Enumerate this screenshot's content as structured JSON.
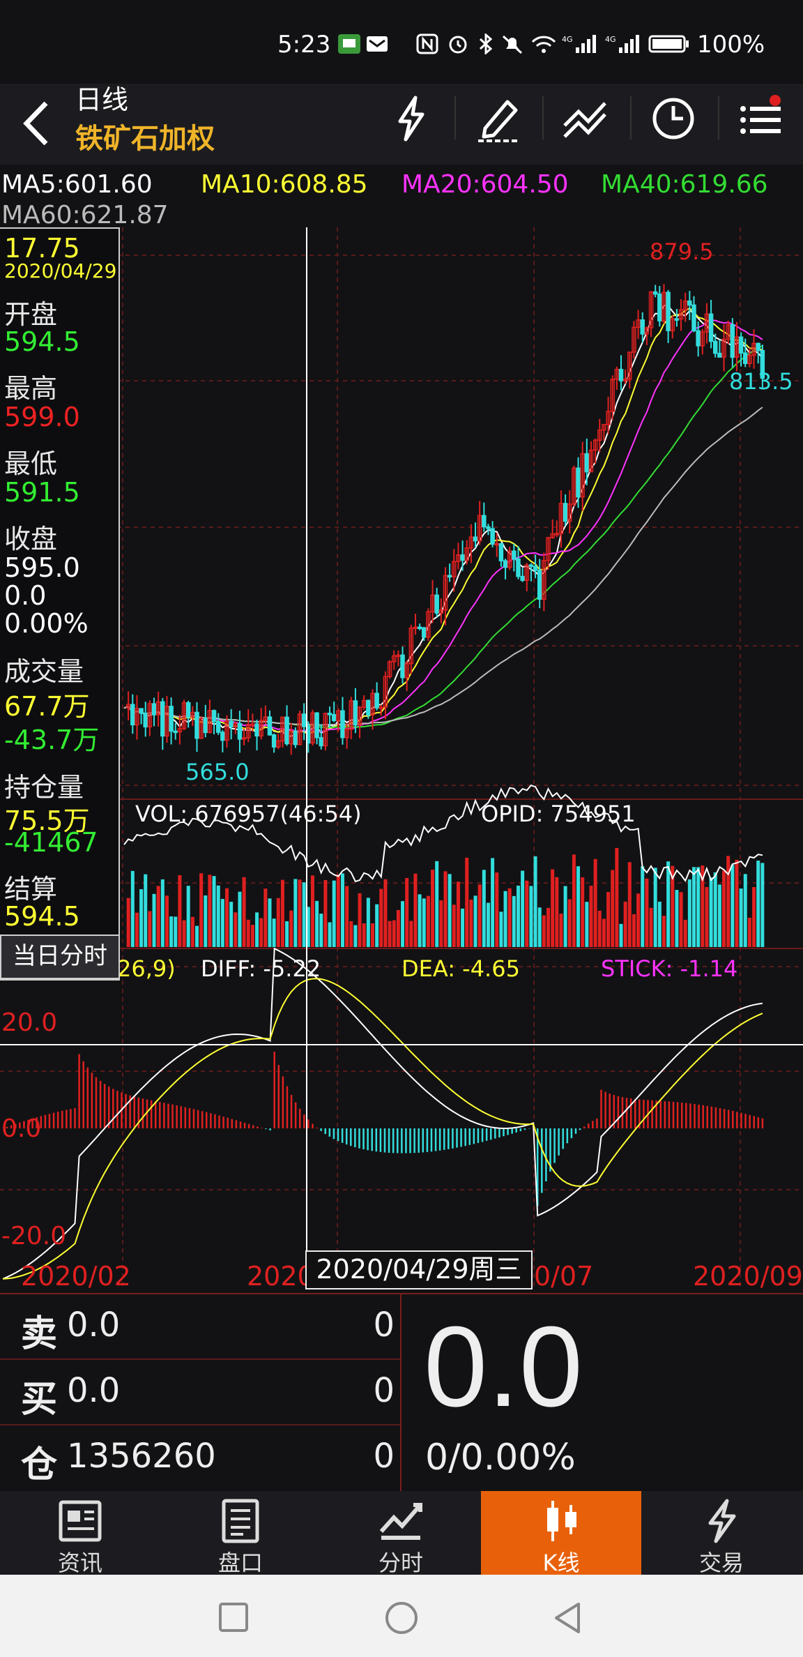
{
  "status_bar": {
    "time": "5:23",
    "battery": "100%"
  },
  "header": {
    "period": "日线",
    "contract": "铁矿石加权"
  },
  "ma": {
    "ma5": "MA5:601.60",
    "ma10": "MA10:608.85",
    "ma20": "MA20:604.50",
    "ma40": "MA40:619.66",
    "ma60": "MA60:621.87",
    "colors": {
      "ma5": "#ffffff",
      "ma10": "#ffff33",
      "ma20": "#ff33ff",
      "ma40": "#33dd33",
      "ma60": "#bbbbbb"
    }
  },
  "info_panel": {
    "top_value": "17.75",
    "date": "2020/04/29",
    "open_label": "开盘",
    "open": "594.5",
    "high_label": "最高",
    "high": "599.0",
    "low_label": "最低",
    "low": "591.5",
    "close_label": "收盘",
    "close": "595.0",
    "change": "0.0",
    "change_pct": "0.00%",
    "volume_label": "成交量",
    "volume": "67.7万",
    "volume_change": "-43.7万",
    "oi_label": "持仓量",
    "oi": "75.5万",
    "oi_change": "-41467",
    "settle_label": "结算",
    "settle": "594.5",
    "intraday_button": "当日分时"
  },
  "chart": {
    "max_label": "879.5",
    "min_label": "565.0",
    "last_label": "813.5",
    "vol_text": "VOL: 676957(46:54)",
    "opid_text": "OPID: 754951",
    "macd_params": "26,9)",
    "diff_text": "DIFF: -5.22",
    "dea_text": "DEA: -4.65",
    "stick_text": "STICK: -1.14",
    "macd_upper": "20.0",
    "macd_zero": "0.0",
    "macd_lower": "-20.0",
    "x_labels": [
      "2020/02",
      "2020",
      "0/07",
      "2020/09"
    ],
    "tooltip_date": "2020/04/29周三",
    "colors": {
      "up": "#e02020",
      "down": "#33dddd",
      "grid": "#5a1a1a",
      "axis_text": "#e02020"
    }
  },
  "orderbook": {
    "sell_key": "卖",
    "sell_price": "0.0",
    "sell_qty": "0",
    "buy_key": "买",
    "buy_price": "0.0",
    "buy_qty": "0",
    "pos_key": "仓",
    "pos_value": "1356260",
    "pos_qty": "0",
    "last_price": "0.0",
    "change_text": "0/0.00%"
  },
  "tabs": [
    {
      "label": "资讯",
      "icon": "news-icon"
    },
    {
      "label": "盘口",
      "icon": "orderbook-icon"
    },
    {
      "label": "分时",
      "icon": "intraday-icon"
    },
    {
      "label": "K线",
      "icon": "candlestick-icon",
      "active": true
    },
    {
      "label": "交易",
      "icon": "trade-icon"
    }
  ]
}
